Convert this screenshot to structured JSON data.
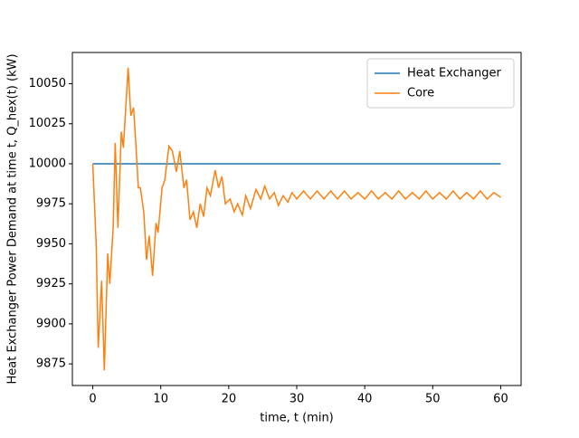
{
  "chart_data": {
    "type": "line",
    "xlabel": "time, t (min)",
    "ylabel": "Heat Exchanger Power Demand at time t, Q_hex(t) (kW)",
    "x": [
      0,
      0.5,
      0.8,
      1.1,
      1.3,
      1.7,
      2.2,
      2.5,
      3.0,
      3.3,
      3.7,
      4.2,
      4.5,
      5.2,
      5.6,
      6.0,
      6.3,
      6.7,
      7.0,
      7.5,
      7.9,
      8.3,
      8.8,
      9.3,
      9.6,
      10.2,
      10.6,
      11.2,
      11.7,
      12.3,
      12.8,
      13.4,
      13.8,
      14.3,
      14.8,
      15.3,
      15.8,
      16.3,
      16.8,
      17.3,
      18.0,
      18.5,
      19.0,
      19.5,
      20.2,
      20.8,
      21.3,
      22.0,
      22.5,
      23.2,
      24.0,
      24.7,
      25.3,
      26.0,
      26.7,
      27.3,
      28.0,
      28.7,
      29.3,
      30.0,
      31,
      32,
      33,
      34,
      35,
      36,
      37,
      38,
      39,
      40,
      41,
      42,
      43,
      44,
      45,
      46,
      47,
      48,
      49,
      50,
      51,
      52,
      53,
      54,
      55,
      56,
      57,
      58,
      59,
      60
    ],
    "series": [
      {
        "name": "Heat Exchanger",
        "color": "#1f77b4",
        "values": [
          10000,
          10000,
          10000,
          10000,
          10000,
          10000,
          10000,
          10000,
          10000,
          10000,
          10000,
          10000,
          10000,
          10000,
          10000,
          10000,
          10000,
          10000,
          10000,
          10000,
          10000,
          10000,
          10000,
          10000,
          10000,
          10000,
          10000,
          10000,
          10000,
          10000,
          10000,
          10000,
          10000,
          10000,
          10000,
          10000,
          10000,
          10000,
          10000,
          10000,
          10000,
          10000,
          10000,
          10000,
          10000,
          10000,
          10000,
          10000,
          10000,
          10000,
          10000,
          10000,
          10000,
          10000,
          10000,
          10000,
          10000,
          10000,
          10000,
          10000,
          10000,
          10000,
          10000,
          10000,
          10000,
          10000,
          10000,
          10000,
          10000,
          10000,
          10000,
          10000,
          10000,
          10000,
          10000,
          10000,
          10000,
          10000,
          10000,
          10000,
          10000,
          10000,
          10000,
          10000,
          10000,
          10000,
          10000,
          10000,
          10000,
          10000
        ]
      },
      {
        "name": "Core",
        "color": "#ff7f0e",
        "values": [
          10000,
          9950,
          9885,
          9910,
          9927,
          9871,
          9944,
          9925,
          9960,
          10013,
          9960,
          10020,
          10010,
          10060,
          10030,
          10035,
          10015,
          9985,
          9985,
          9970,
          9940,
          9955,
          9930,
          9963,
          9957,
          9985,
          9990,
          10011,
          10008,
          9995,
          10008,
          9985,
          9990,
          9965,
          9970,
          9960,
          9975,
          9967,
          9985,
          9980,
          9996,
          9985,
          9992,
          9975,
          9978,
          9970,
          9975,
          9968,
          9980,
          9972,
          9984,
          9978,
          9986,
          9978,
          9982,
          9974,
          9980,
          9976,
          9982,
          9978,
          9983,
          9978,
          9983,
          9978,
          9983,
          9978,
          9983,
          9978,
          9982,
          9978,
          9983,
          9978,
          9982,
          9978,
          9983,
          9978,
          9982,
          9978,
          9983,
          9978,
          9982,
          9978,
          9983,
          9978,
          9982,
          9978,
          9983,
          9978,
          9982,
          9979
        ]
      }
    ],
    "xlim": [
      -3,
      63
    ],
    "xticks": [
      0,
      10,
      20,
      30,
      40,
      50,
      60
    ],
    "ylim": [
      9861.5,
      10069.5
    ],
    "yticks": [
      9875,
      9900,
      9925,
      9950,
      9975,
      10000,
      10025,
      10050
    ],
    "legend": "upper right"
  }
}
